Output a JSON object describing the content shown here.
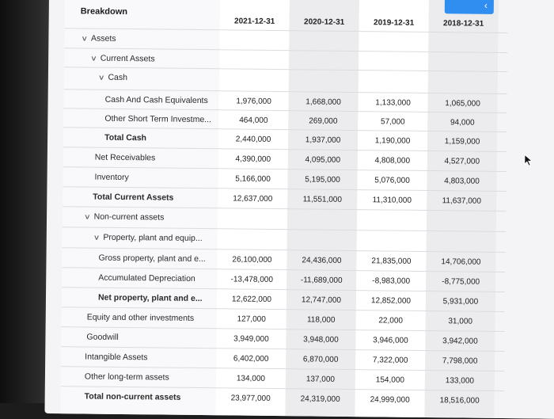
{
  "header": {
    "title": "Breakdown",
    "columns": [
      "2021-12-31",
      "2020-12-31",
      "2019-12-31",
      "2018-12-31"
    ]
  },
  "rows": [
    {
      "label": "Assets",
      "expander": true,
      "bold": false,
      "values": [
        "",
        "",
        "",
        ""
      ]
    },
    {
      "label": "Current Assets",
      "expander": true,
      "bold": false,
      "values": [
        "",
        "",
        "",
        ""
      ]
    },
    {
      "label": "Cash",
      "expander": true,
      "bold": false,
      "values": [
        "",
        "",
        "",
        ""
      ]
    },
    {
      "label": "Cash And Cash Equivalents",
      "expander": false,
      "bold": false,
      "values": [
        "1,976,000",
        "1,668,000",
        "1,133,000",
        "1,065,000"
      ]
    },
    {
      "label": "Other Short Term Investme...",
      "expander": false,
      "bold": false,
      "values": [
        "464,000",
        "269,000",
        "57,000",
        "94,000"
      ]
    },
    {
      "label": "Total Cash",
      "expander": false,
      "bold": true,
      "values": [
        "2,440,000",
        "1,937,000",
        "1,190,000",
        "1,159,000"
      ]
    },
    {
      "label": "Net Receivables",
      "expander": false,
      "bold": false,
      "values": [
        "4,390,000",
        "4,095,000",
        "4,808,000",
        "4,527,000"
      ]
    },
    {
      "label": "Inventory",
      "expander": false,
      "bold": false,
      "values": [
        "5,166,000",
        "5,195,000",
        "5,076,000",
        "4,803,000"
      ]
    },
    {
      "label": "Total Current Assets",
      "expander": false,
      "bold": true,
      "values": [
        "12,637,000",
        "11,551,000",
        "11,310,000",
        "11,637,000"
      ]
    },
    {
      "label": "Non-current assets",
      "expander": true,
      "bold": false,
      "values": [
        "",
        "",
        "",
        ""
      ]
    },
    {
      "label": "Property, plant and equip...",
      "expander": true,
      "bold": false,
      "values": [
        "",
        "",
        "",
        ""
      ]
    },
    {
      "label": "Gross property, plant and e...",
      "expander": false,
      "bold": false,
      "values": [
        "26,100,000",
        "24,436,000",
        "21,835,000",
        "14,706,000"
      ]
    },
    {
      "label": "Accumulated Depreciation",
      "expander": false,
      "bold": false,
      "values": [
        "-13,478,000",
        "-11,689,000",
        "-8,983,000",
        "-8,775,000"
      ]
    },
    {
      "label": "Net property, plant and e...",
      "expander": false,
      "bold": true,
      "values": [
        "12,622,000",
        "12,747,000",
        "12,852,000",
        "5,931,000"
      ]
    },
    {
      "label": "Equity and other investments",
      "expander": false,
      "bold": false,
      "values": [
        "127,000",
        "118,000",
        "22,000",
        "31,000"
      ]
    },
    {
      "label": "Goodwill",
      "expander": false,
      "bold": false,
      "values": [
        "3,949,000",
        "3,948,000",
        "3,946,000",
        "3,942,000"
      ]
    },
    {
      "label": "Intangible Assets",
      "expander": false,
      "bold": false,
      "values": [
        "6,402,000",
        "6,870,000",
        "7,322,000",
        "7,798,000"
      ]
    },
    {
      "label": "Other long-term assets",
      "expander": false,
      "bold": false,
      "values": [
        "134,000",
        "137,000",
        "154,000",
        "133,000"
      ]
    },
    {
      "label": "Total non-current assets",
      "expander": false,
      "bold": true,
      "values": [
        "23,977,000",
        "24,319,000",
        "24,999,000",
        "18,516,000"
      ]
    }
  ],
  "icons": {
    "expander": "chevron-down-icon",
    "top_button": "chevron-icon"
  },
  "colors": {
    "accent": "#2f8ef0"
  }
}
